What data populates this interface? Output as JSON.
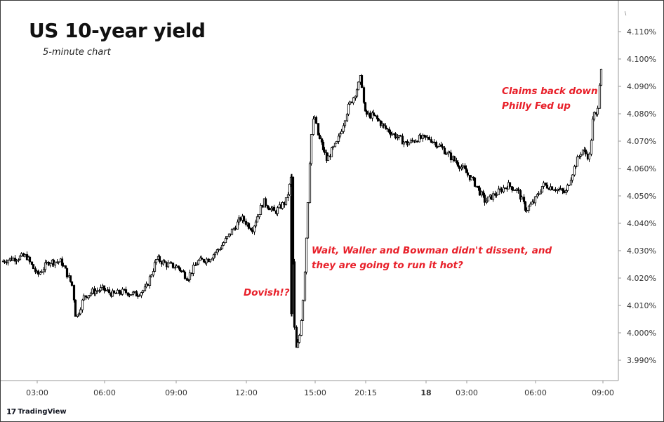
{
  "title": "US 10-year yield",
  "subtitle": "5-minute chart",
  "annotations": [
    {
      "text": "Dovish!?"
    },
    {
      "text": "Wait, Waller and Bowman didn't dissent, and"
    },
    {
      "text": "they are going to run it hot?"
    },
    {
      "text": "Claims back down"
    },
    {
      "text": "Philly Fed up"
    }
  ],
  "watermark": "TradingView",
  "corner_mark": "\\",
  "colors": {
    "up": "#ffffff",
    "down": "#000000",
    "outline": "#000000",
    "annotation": "#e8202a"
  },
  "chart_data": {
    "type": "candlestick",
    "title": "US 10-year yield",
    "subtitle": "5-minute chart",
    "x_ticks": [
      "03:00",
      "06:00",
      "09:00",
      "12:00",
      "15:00",
      "20:15",
      "18",
      "03:00",
      "06:00",
      "09:00"
    ],
    "y_ticks": [
      "4.110%",
      "4.100%",
      "4.090%",
      "4.080%",
      "4.070%",
      "4.060%",
      "4.050%",
      "4.040%",
      "4.030%",
      "4.020%",
      "4.010%",
      "4.000%",
      "3.990%"
    ],
    "ylim": [
      3.9855,
      4.1155
    ],
    "grid": false,
    "approx_path": [
      [
        0,
        4.026
      ],
      [
        14,
        4.027
      ],
      [
        36,
        4.028
      ],
      [
        52,
        4.021
      ],
      [
        68,
        4.026
      ],
      [
        86,
        4.026
      ],
      [
        102,
        4.017
      ],
      [
        107,
        4.005
      ],
      [
        118,
        4.013
      ],
      [
        130,
        4.015
      ],
      [
        145,
        4.016
      ],
      [
        160,
        4.014
      ],
      [
        175,
        4.015
      ],
      [
        192,
        4.014
      ],
      [
        206,
        4.016
      ],
      [
        222,
        4.027
      ],
      [
        236,
        4.025
      ],
      [
        252,
        4.024
      ],
      [
        266,
        4.02
      ],
      [
        280,
        4.026
      ],
      [
        296,
        4.027
      ],
      [
        312,
        4.031
      ],
      [
        326,
        4.036
      ],
      [
        342,
        4.042
      ],
      [
        358,
        4.038
      ],
      [
        374,
        4.048
      ],
      [
        390,
        4.044
      ],
      [
        406,
        4.048
      ],
      [
        414,
        4.057
      ],
      [
        417,
        4.005
      ],
      [
        421,
        3.993
      ],
      [
        426,
        4.0
      ],
      [
        431,
        4.015
      ],
      [
        436,
        4.04
      ],
      [
        441,
        4.07
      ],
      [
        446,
        4.08
      ],
      [
        452,
        4.072
      ],
      [
        458,
        4.068
      ],
      [
        464,
        4.063
      ],
      [
        470,
        4.066
      ],
      [
        478,
        4.069
      ],
      [
        486,
        4.075
      ],
      [
        494,
        4.082
      ],
      [
        502,
        4.086
      ],
      [
        510,
        4.091
      ],
      [
        513,
        4.094
      ],
      [
        518,
        4.08
      ],
      [
        532,
        4.079
      ],
      [
        546,
        4.075
      ],
      [
        562,
        4.072
      ],
      [
        578,
        4.069
      ],
      [
        594,
        4.071
      ],
      [
        610,
        4.071
      ],
      [
        626,
        4.068
      ],
      [
        642,
        4.064
      ],
      [
        658,
        4.06
      ],
      [
        674,
        4.055
      ],
      [
        690,
        4.048
      ],
      [
        706,
        4.051
      ],
      [
        722,
        4.054
      ],
      [
        736,
        4.052
      ],
      [
        748,
        4.045
      ],
      [
        760,
        4.048
      ],
      [
        772,
        4.054
      ],
      [
        788,
        4.053
      ],
      [
        804,
        4.051
      ],
      [
        816,
        4.06
      ],
      [
        828,
        4.067
      ],
      [
        838,
        4.064
      ],
      [
        844,
        4.08
      ],
      [
        849,
        4.079
      ],
      [
        853,
        4.093
      ],
      [
        857,
        4.101
      ]
    ]
  }
}
